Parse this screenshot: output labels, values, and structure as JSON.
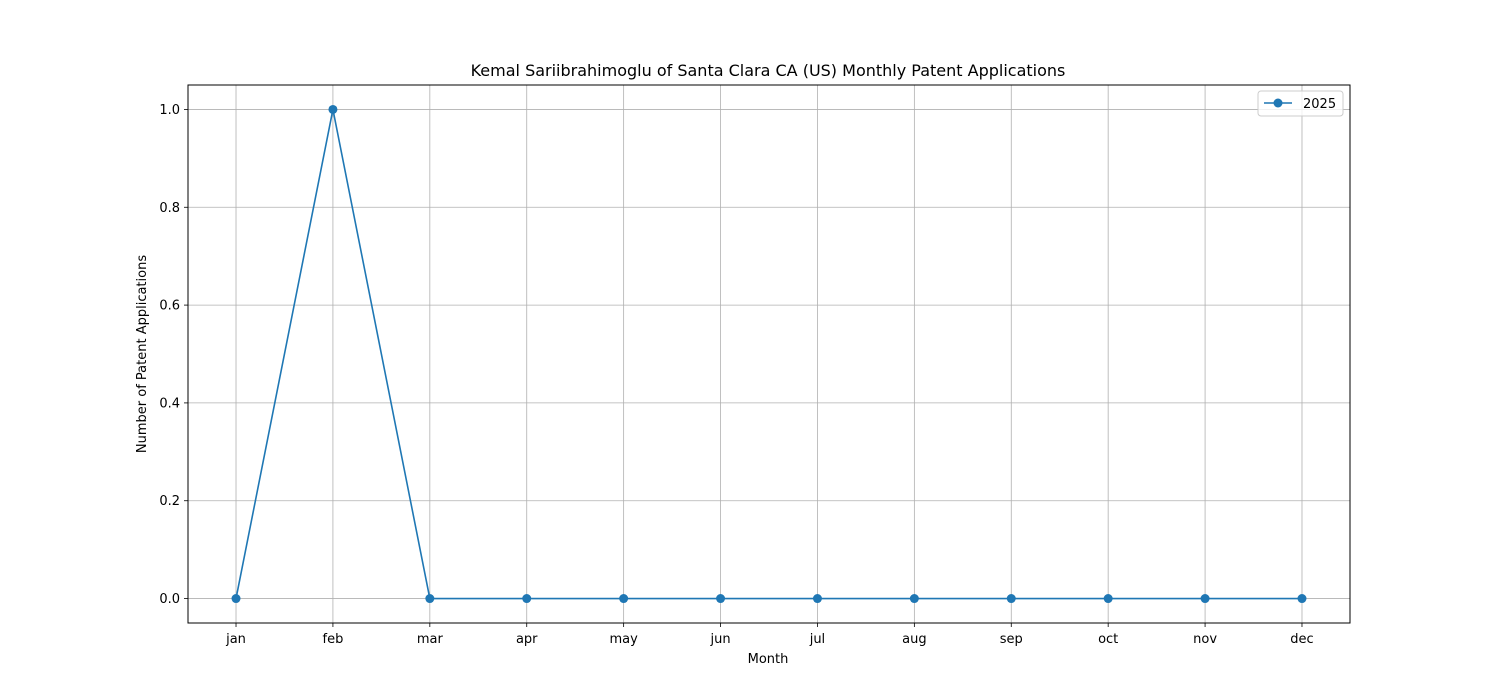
{
  "chart_data": {
    "type": "line",
    "title": "Kemal Sariibrahimoglu of Santa Clara CA (US) Monthly Patent Applications",
    "xlabel": "Month",
    "ylabel": "Number of Patent Applications",
    "categories": [
      "jan",
      "feb",
      "mar",
      "apr",
      "may",
      "jun",
      "jul",
      "aug",
      "sep",
      "oct",
      "nov",
      "dec"
    ],
    "series": [
      {
        "name": "2025",
        "values": [
          0,
          1,
          0,
          0,
          0,
          0,
          0,
          0,
          0,
          0,
          0,
          0
        ],
        "color": "#1f77b4"
      }
    ],
    "ylim": [
      -0.05,
      1.05
    ],
    "yticks": [
      "0.0",
      "0.2",
      "0.4",
      "0.6",
      "0.8",
      "1.0"
    ],
    "grid": true,
    "legend_position": "top-right"
  }
}
